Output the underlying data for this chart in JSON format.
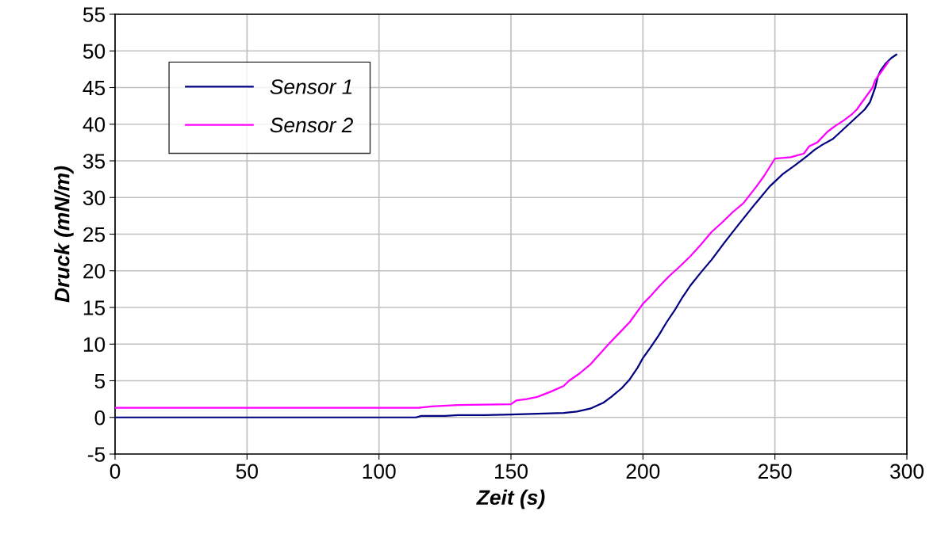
{
  "chart_data": {
    "type": "line",
    "xlabel": "Zeit (s)",
    "ylabel": "Druck (mN/m)",
    "xlim": [
      0,
      300
    ],
    "xticks": [
      0,
      50,
      100,
      150,
      200,
      250,
      300
    ],
    "ylim": [
      -5,
      55
    ],
    "yticks": [
      -5,
      0,
      5,
      10,
      15,
      20,
      25,
      30,
      35,
      40,
      45,
      50,
      55
    ],
    "grid": true,
    "legend": "top left",
    "marker": "none",
    "line_style": "solid",
    "series": [
      {
        "name": "Sensor 1",
        "color": "#000080",
        "x": [
          0,
          114,
          116,
          120,
          125,
          130,
          140,
          150,
          160,
          170,
          175,
          180,
          185,
          188,
          192,
          195,
          198,
          200,
          203,
          206,
          209,
          212,
          215,
          218,
          222,
          226,
          231,
          236,
          242,
          248,
          253,
          258,
          262,
          265,
          268,
          272,
          275,
          278,
          281,
          284,
          286,
          287,
          288,
          289,
          290,
          292,
          294,
          296
        ],
        "values": [
          0,
          0,
          0.2,
          0.2,
          0.2,
          0.3,
          0.3,
          0.4,
          0.5,
          0.6,
          0.8,
          1.2,
          2,
          2.8,
          4,
          5.2,
          6.8,
          8.1,
          9.6,
          11.2,
          13,
          14.6,
          16.4,
          18,
          19.8,
          21.5,
          23.9,
          26.2,
          28.9,
          31.5,
          33.2,
          34.5,
          35.6,
          36.5,
          37.2,
          38,
          39,
          40,
          41,
          42,
          43,
          44,
          45,
          46.5,
          47.3,
          48.3,
          49,
          49.5
        ]
      },
      {
        "name": "Sensor 2",
        "color": "#ff00ff",
        "x": [
          0,
          115,
          120,
          130,
          150,
          152,
          156,
          160,
          165,
          170,
          172,
          176,
          180,
          182,
          185,
          187,
          191,
          195,
          200,
          203,
          206,
          210,
          214,
          218,
          222,
          226,
          230,
          234,
          238,
          243,
          246,
          250,
          256,
          261,
          263,
          266,
          270,
          273,
          276,
          279,
          281,
          283,
          285,
          287,
          288,
          290,
          293
        ],
        "values": [
          1.3,
          1.3,
          1.5,
          1.7,
          1.8,
          2.3,
          2.5,
          2.8,
          3.5,
          4.3,
          5,
          6,
          7.2,
          8,
          9.2,
          10,
          11.5,
          13,
          15.5,
          16.6,
          17.8,
          19.3,
          20.6,
          22,
          23.6,
          25.3,
          26.6,
          28,
          29.2,
          31.5,
          33,
          35.3,
          35.5,
          36,
          37,
          37.5,
          39,
          39.8,
          40.5,
          41.3,
          42,
          43,
          44,
          45,
          46,
          47,
          48.5
        ]
      }
    ]
  }
}
